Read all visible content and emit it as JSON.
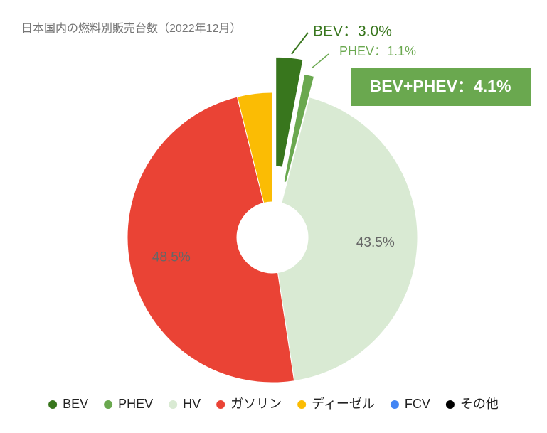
{
  "chart_data": {
    "type": "pie",
    "title": "日本国内の燃料別販売台数（2022年12月）",
    "categories": [
      "BEV",
      "PHEV",
      "HV",
      "ガソリン",
      "ディーゼル",
      "FCV",
      "その他"
    ],
    "values": [
      3.0,
      1.1,
      43.5,
      48.5,
      3.9,
      0.0,
      0.0
    ],
    "value_labels": [
      "BEV：3.0%",
      "PHEV：1.1%",
      "43.5%",
      "48.5%",
      null,
      null,
      null
    ],
    "colors": [
      "#38761d",
      "#6aa84f",
      "#d9ead3",
      "#ea4335",
      "#fbbc04",
      "#4285f4",
      "#000000"
    ],
    "annotation": "BEV+PHEV：4.1%",
    "legend": "bottom"
  }
}
